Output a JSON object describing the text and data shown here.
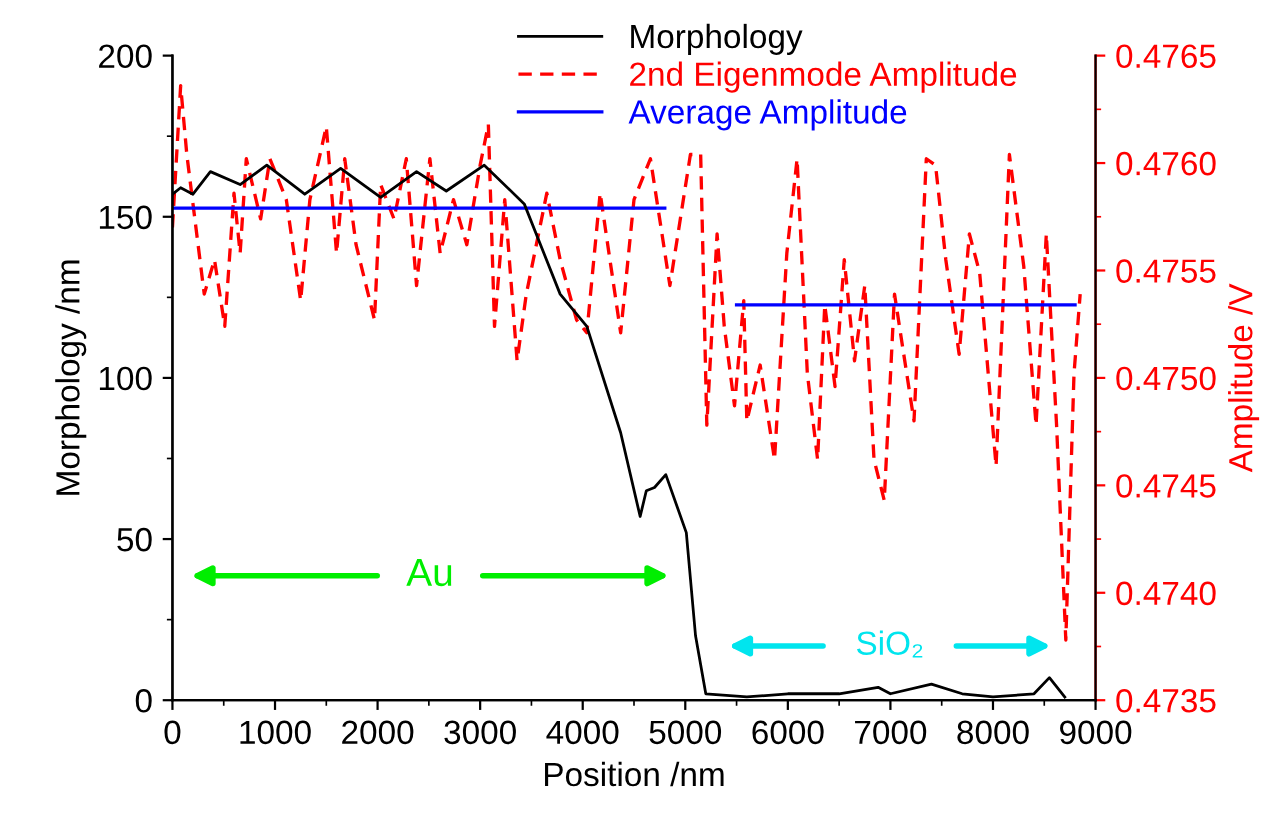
{
  "chart_data": {
    "type": "line",
    "xlabel": "Position /nm",
    "ylabel": "Morphology /nm",
    "y2label": "Amplitude /V",
    "xlim": [
      0,
      9000
    ],
    "xticks": [
      0,
      1000,
      2000,
      3000,
      4000,
      5000,
      6000,
      7000,
      8000,
      9000
    ],
    "ylim": [
      0,
      200
    ],
    "yticks": [
      0,
      50,
      100,
      150,
      200
    ],
    "y2lim": [
      0.4735,
      0.4765
    ],
    "y2ticks": [
      {
        "value": 0.4735,
        "label": "0.4735"
      },
      {
        "value": 0.474,
        "label": "0.4740"
      },
      {
        "value": 0.4745,
        "label": "0.4745"
      },
      {
        "value": 0.475,
        "label": "0.4750"
      },
      {
        "value": 0.4755,
        "label": "0.4755"
      },
      {
        "value": 0.476,
        "label": "0.4760"
      },
      {
        "value": 0.4765,
        "label": "0.4765"
      }
    ],
    "grid": false,
    "legend": "top right",
    "marker": "none",
    "series": [
      {
        "name": "Morphology",
        "color": "#000000",
        "line_style": "solid",
        "x": [
          0,
          80,
          200,
          370,
          660,
          920,
          1290,
          1640,
          2030,
          2380,
          2670,
          3040,
          3430,
          3780,
          4040,
          4370,
          4560,
          4620,
          4700,
          4810,
          5010,
          5100,
          5200,
          5600,
          6000,
          6500,
          6880,
          7000,
          7400,
          7700,
          8000,
          8400,
          8550,
          8700
        ],
        "values": [
          157,
          159,
          157,
          164,
          160,
          166,
          157,
          165,
          156,
          164,
          158,
          166,
          154,
          126,
          116,
          83,
          57,
          65,
          66,
          70,
          52,
          20,
          2,
          1,
          2,
          2,
          4,
          2,
          5,
          2,
          1,
          2,
          7,
          1
        ]
      },
      {
        "name": "2nd Eigenmode Amplitude",
        "color": "#ff0000",
        "line_style": "dashed",
        "axis": "y2",
        "x": [
          0,
          80,
          140,
          310,
          410,
          510,
          600,
          660,
          720,
          860,
          950,
          1110,
          1250,
          1340,
          1500,
          1600,
          1680,
          1790,
          1970,
          2030,
          2160,
          2280,
          2380,
          2510,
          2610,
          2740,
          2870,
          3000,
          3080,
          3140,
          3240,
          3360,
          3450,
          3650,
          3780,
          3940,
          4040,
          4170,
          4370,
          4500,
          4660,
          4850,
          5050,
          5150,
          5210,
          5310,
          5380,
          5480,
          5570,
          5600,
          5730,
          5870,
          5990,
          6090,
          6190,
          6290,
          6360,
          6460,
          6550,
          6650,
          6750,
          6840,
          6940,
          7040,
          7130,
          7230,
          7350,
          7440,
          7540,
          7670,
          7770,
          7870,
          8030,
          8160,
          8300,
          8420,
          8520,
          8620,
          8710,
          8790,
          8850
        ],
        "values": [
          0.4757,
          0.47636,
          0.47604,
          0.47539,
          0.47555,
          0.47524,
          0.47586,
          0.47558,
          0.47602,
          0.47574,
          0.47602,
          0.47583,
          0.47536,
          0.47583,
          0.47617,
          0.47558,
          0.47602,
          0.47562,
          0.47527,
          0.4759,
          0.47574,
          0.47602,
          0.47543,
          0.47602,
          0.47558,
          0.47583,
          0.47562,
          0.47599,
          0.47618,
          0.47524,
          0.47583,
          0.47508,
          0.47539,
          0.47586,
          0.47555,
          0.47527,
          0.47521,
          0.47586,
          0.47521,
          0.47583,
          0.47602,
          0.47543,
          0.47604,
          0.47604,
          0.47478,
          0.47567,
          0.47524,
          0.47487,
          0.47536,
          0.4748,
          0.47506,
          0.47462,
          0.47558,
          0.47602,
          0.47502,
          0.47462,
          0.47534,
          0.47496,
          0.47555,
          0.47508,
          0.47543,
          0.47462,
          0.47443,
          0.47539,
          0.47511,
          0.4748,
          0.47602,
          0.47599,
          0.47555,
          0.47511,
          0.47567,
          0.47549,
          0.47459,
          0.47604,
          0.47552,
          0.47478,
          0.47567,
          0.47478,
          0.47378,
          0.47502,
          0.47539
        ]
      },
      {
        "name": "Average Amplitude",
        "color": "#0000ff",
        "line_style": "solid",
        "axis": "y2",
        "x": [
          0,
          4800,
          5150,
          5500,
          8800
        ],
        "values": [
          0.47579,
          0.47579,
          null,
          0.47534,
          0.47534
        ]
      }
    ],
    "annotations": [
      "Au",
      "SiO₂"
    ]
  }
}
